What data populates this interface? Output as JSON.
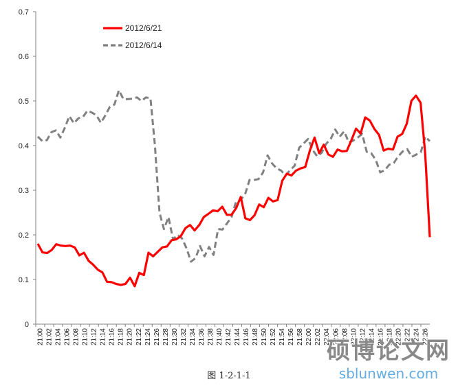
{
  "figure_caption": "图 1-2-1-1",
  "watermark": {
    "text": "硕博论文网",
    "url": "sblunwen.com"
  },
  "chart_data": {
    "type": "line",
    "title": "",
    "xlabel": "",
    "ylabel": "",
    "ylim": [
      0,
      0.7
    ],
    "yticks": [
      "0",
      "0.1",
      "0.2",
      "0.3",
      "0.4",
      "0.5",
      "0.6",
      "0.7"
    ],
    "x_tick_labels": [
      "21:00",
      "21:02",
      "21:04",
      "21:06",
      "21:08",
      "21:10",
      "21:12",
      "21:14",
      "21:16",
      "21:18",
      "21:20",
      "21:22",
      "21:24",
      "21:26",
      "21:28",
      "21:30",
      "21:32",
      "21:34",
      "21:36",
      "21:38",
      "21:40",
      "21:42",
      "21:44",
      "21:46",
      "21:48",
      "21:50",
      "21:52",
      "21:54",
      "21:56",
      "21:58",
      "22:00",
      "22:02",
      "22:04",
      "22:06",
      "22:08",
      "22:10",
      "22:12",
      "22:14",
      "22:16",
      "22:18",
      "22:20",
      "22:22",
      "22:24",
      "22:26"
    ],
    "grid": false,
    "legend": "top-left",
    "series": [
      {
        "name": "2012/6/21",
        "color": "#ff0000",
        "style": "solid",
        "values": [
          0.18,
          0.161,
          0.159,
          0.166,
          0.179,
          0.176,
          0.175,
          0.176,
          0.172,
          0.154,
          0.16,
          0.142,
          0.133,
          0.122,
          0.116,
          0.095,
          0.094,
          0.09,
          0.088,
          0.09,
          0.104,
          0.085,
          0.115,
          0.11,
          0.16,
          0.152,
          0.162,
          0.172,
          0.174,
          0.188,
          0.19,
          0.197,
          0.215,
          0.222,
          0.21,
          0.222,
          0.24,
          0.247,
          0.255,
          0.253,
          0.263,
          0.245,
          0.245,
          0.26,
          0.285,
          0.237,
          0.233,
          0.244,
          0.268,
          0.262,
          0.283,
          0.275,
          0.278,
          0.321,
          0.337,
          0.333,
          0.344,
          0.349,
          0.352,
          0.389,
          0.418,
          0.383,
          0.402,
          0.38,
          0.375,
          0.391,
          0.387,
          0.388,
          0.412,
          0.438,
          0.427,
          0.463,
          0.456,
          0.437,
          0.424,
          0.389,
          0.393,
          0.391,
          0.42,
          0.426,
          0.449,
          0.5,
          0.512,
          0.496,
          0.382,
          0.195
        ]
      },
      {
        "name": "2012/6/14",
        "color": "#808080",
        "style": "dashed",
        "values": [
          0.42,
          0.41,
          0.412,
          0.43,
          0.434,
          0.418,
          0.44,
          0.466,
          0.45,
          0.461,
          0.464,
          0.478,
          0.474,
          0.468,
          0.451,
          0.468,
          0.487,
          0.492,
          0.524,
          0.504,
          0.504,
          0.505,
          0.508,
          0.5,
          0.508,
          0.506,
          0.4,
          0.25,
          0.213,
          0.24,
          0.19,
          0.2,
          0.192,
          0.17,
          0.14,
          0.148,
          0.175,
          0.152,
          0.173,
          0.155,
          0.213,
          0.212,
          0.226,
          0.24,
          0.275,
          0.278,
          0.291,
          0.323,
          0.323,
          0.325,
          0.34,
          0.378,
          0.36,
          0.349,
          0.344,
          0.333,
          0.345,
          0.355,
          0.395,
          0.405,
          0.415,
          0.39,
          0.376,
          0.384,
          0.404,
          0.415,
          0.436,
          0.42,
          0.432,
          0.407,
          0.411,
          0.418,
          0.426,
          0.386,
          0.383,
          0.368,
          0.34,
          0.345,
          0.357,
          0.361,
          0.376,
          0.387,
          0.392,
          0.375,
          0.38,
          0.385,
          0.42,
          0.41
        ]
      }
    ]
  }
}
